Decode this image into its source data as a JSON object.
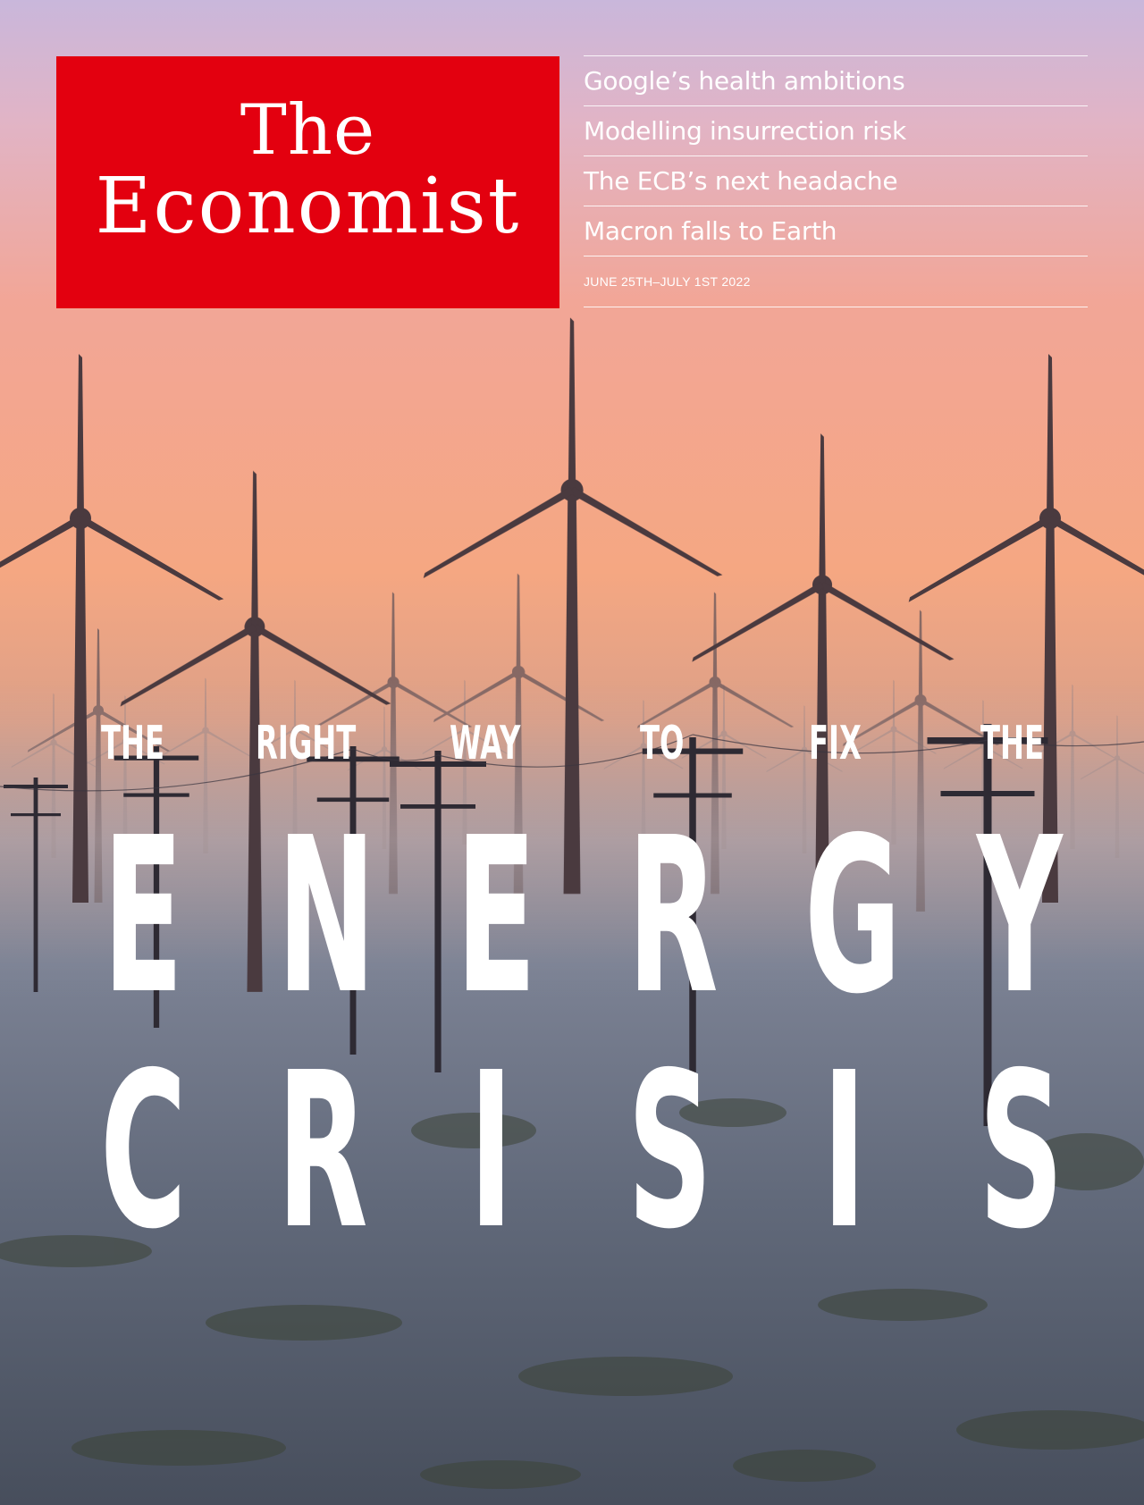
{
  "masthead": {
    "line1": "The",
    "line2": "Economist",
    "brand_color": "#e3000f"
  },
  "headlines": [
    "Google’s health ambitions",
    "Modelling insurrection risk",
    "The ECB’s next headache",
    "Macron falls to Earth"
  ],
  "issue_date": "JUNE 25TH–JULY 1ST 2022",
  "cover_story": {
    "kicker_words": [
      "THE",
      "RIGHT",
      "WAY",
      "TO",
      "FIX",
      "THE"
    ],
    "line1_letters": [
      "E",
      "N",
      "E",
      "R",
      "G",
      "Y"
    ],
    "line2_letters": [
      "C",
      "R",
      "I",
      "S",
      "I",
      "S"
    ]
  }
}
